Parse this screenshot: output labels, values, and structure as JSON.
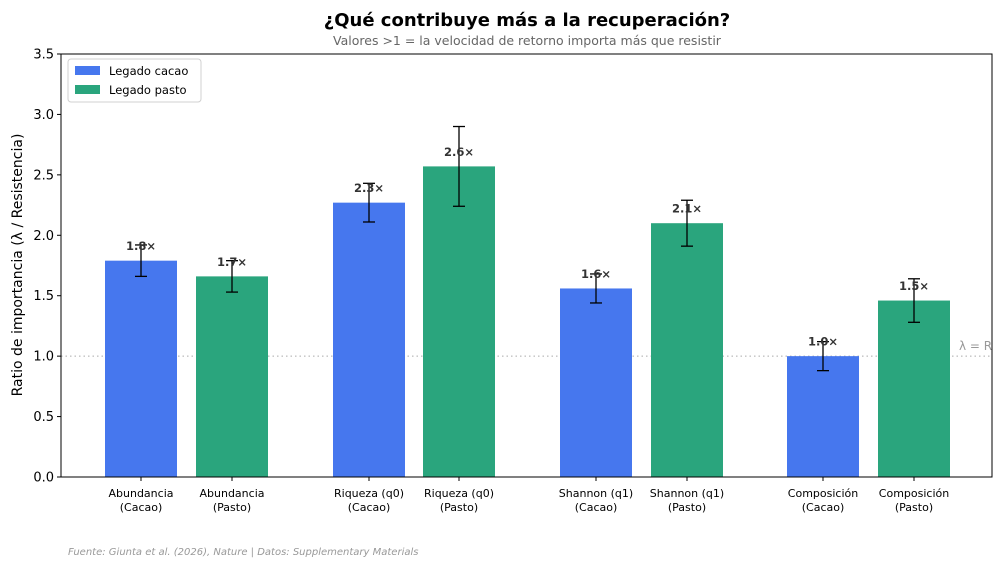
{
  "chart_data": {
    "type": "bar",
    "title": "¿Qué contribuye más a la recuperación?",
    "subtitle": "Valores >1 = la velocidad de retorno importa más que resistir",
    "ylabel": "Ratio de importancia (λ / Resistencia)",
    "xlabel": "",
    "ylim": [
      0,
      3.5
    ],
    "yticks": [
      "0.0",
      "0.5",
      "1.0",
      "1.5",
      "2.0",
      "2.5",
      "3.0",
      "3.5"
    ],
    "grid": false,
    "legend_position": "top-left",
    "series": [
      {
        "name": "Legado cacao",
        "color": "#4677ee"
      },
      {
        "name": "Legado pasto",
        "color": "#2aa57d"
      }
    ],
    "bars": [
      {
        "label_line1": "Abundancia",
        "label_line2": "(Cacao)",
        "value": 1.79,
        "err": 0.13,
        "value_label": "1.8×",
        "series": 0
      },
      {
        "label_line1": "Abundancia",
        "label_line2": "(Pasto)",
        "value": 1.66,
        "err": 0.13,
        "value_label": "1.7×",
        "series": 1
      },
      {
        "label_line1": "Riqueza (q0)",
        "label_line2": "(Cacao)",
        "value": 2.27,
        "err": 0.16,
        "value_label": "2.3×",
        "series": 0
      },
      {
        "label_line1": "Riqueza (q0)",
        "label_line2": "(Pasto)",
        "value": 2.57,
        "err": 0.33,
        "value_label": "2.6×",
        "series": 1
      },
      {
        "label_line1": "Shannon (q1)",
        "label_line2": "(Cacao)",
        "value": 1.56,
        "err": 0.12,
        "value_label": "1.6×",
        "series": 0
      },
      {
        "label_line1": "Shannon (q1)",
        "label_line2": "(Pasto)",
        "value": 2.1,
        "err": 0.19,
        "value_label": "2.1×",
        "series": 1
      },
      {
        "label_line1": "Composición",
        "label_line2": "(Cacao)",
        "value": 1.0,
        "err": 0.12,
        "value_label": "1.0×",
        "series": 0
      },
      {
        "label_line1": "Composición",
        "label_line2": "(Pasto)",
        "value": 1.46,
        "err": 0.18,
        "value_label": "1.5×",
        "series": 1
      }
    ],
    "reference_line": {
      "value": 1.0,
      "label": "λ = R"
    },
    "source_note": "Fuente: Giunta et al. (2026), Nature | Datos: Supplementary Materials"
  }
}
